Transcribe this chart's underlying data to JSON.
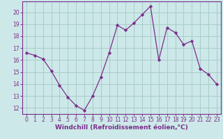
{
  "x": [
    0,
    1,
    2,
    3,
    4,
    5,
    6,
    7,
    8,
    9,
    10,
    11,
    12,
    13,
    14,
    15,
    16,
    17,
    18,
    19,
    20,
    21,
    22,
    23
  ],
  "y": [
    16.6,
    16.4,
    16.1,
    15.1,
    13.9,
    12.9,
    12.2,
    11.8,
    13.0,
    14.6,
    16.6,
    18.9,
    18.5,
    19.1,
    19.8,
    20.5,
    16.0,
    18.7,
    18.3,
    17.3,
    17.6,
    15.3,
    14.8,
    14.0
  ],
  "line_color": "#7b2d8b",
  "marker": "D",
  "marker_size": 2.2,
  "bg_color": "#cce8e8",
  "grid_color": "#aacccc",
  "ylabel_ticks": [
    12,
    13,
    14,
    15,
    16,
    17,
    18,
    19,
    20
  ],
  "ylim": [
    11.5,
    20.9
  ],
  "xlim": [
    -0.5,
    23.5
  ],
  "xlabel": "Windchill (Refroidissement éolien,°C)",
  "xlabel_color": "#7b2d8b",
  "tick_color": "#7b2d8b",
  "tick_fontsize": 5.5,
  "xlabel_fontsize": 6.5
}
